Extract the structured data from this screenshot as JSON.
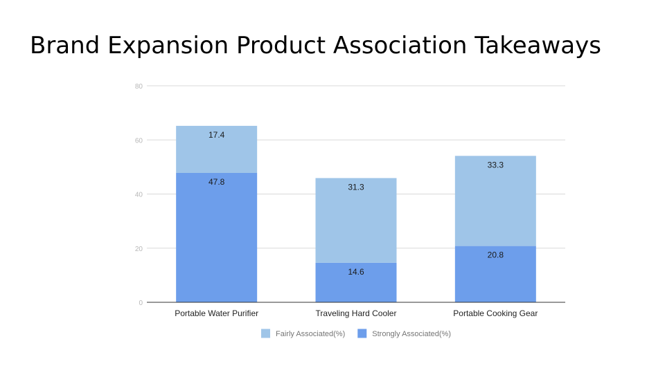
{
  "slide": {
    "title": "Brand Expansion Product Association Takeaways"
  },
  "chart_data": {
    "type": "bar",
    "stacked": true,
    "categories": [
      "Portable Water Purifier",
      "Traveling Hard Cooler",
      "Portable Cooking Gear"
    ],
    "series": [
      {
        "name": "Strongly Associated(%)",
        "values": [
          47.8,
          14.6,
          20.8
        ],
        "color": "#6d9eeb"
      },
      {
        "name": "Fairly Associated(%)",
        "values": [
          17.4,
          31.3,
          33.3
        ],
        "color": "#9fc5e8"
      }
    ],
    "legend_order": [
      1,
      0
    ],
    "ylim": [
      0,
      80
    ],
    "yticks": [
      0,
      20,
      40,
      60,
      80
    ],
    "grid": true,
    "legend_position": "bottom",
    "data_labels": true,
    "title": "",
    "xlabel": "",
    "ylabel": ""
  }
}
